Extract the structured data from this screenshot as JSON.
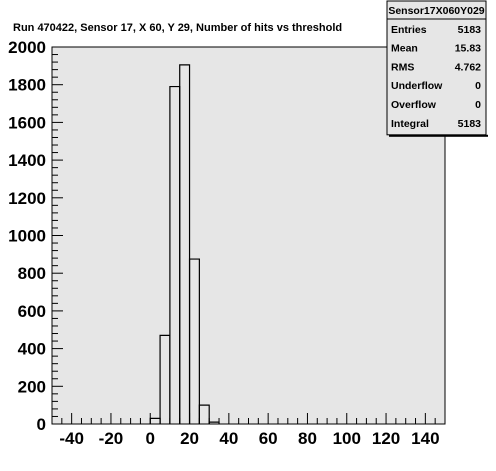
{
  "chart_data": {
    "type": "histogram",
    "title": "Run 470422, Sensor 17, X 60, Y 29, Number of hits vs threshold",
    "xlabel": "",
    "ylabel": "",
    "xlim": [
      -50,
      150
    ],
    "ylim": [
      0,
      2000
    ],
    "x_ticks": [
      -40,
      -20,
      0,
      20,
      40,
      60,
      80,
      100,
      120,
      140
    ],
    "y_ticks": [
      0,
      200,
      400,
      600,
      800,
      1000,
      1200,
      1400,
      1600,
      1800,
      2000
    ],
    "grid": false,
    "bins": [
      {
        "x0": 0,
        "x1": 5,
        "value": 30
      },
      {
        "x0": 5,
        "x1": 10,
        "value": 470
      },
      {
        "x0": 10,
        "x1": 15,
        "value": 1790
      },
      {
        "x0": 15,
        "x1": 20,
        "value": 1905
      },
      {
        "x0": 20,
        "x1": 25,
        "value": 875
      },
      {
        "x0": 25,
        "x1": 30,
        "value": 100
      },
      {
        "x0": 30,
        "x1": 35,
        "value": 10
      }
    ]
  },
  "stats_box": {
    "name": "Sensor17X060Y029",
    "rows": [
      {
        "label": "Entries",
        "value": "5183"
      },
      {
        "label": "Mean",
        "value": "15.83"
      },
      {
        "label": "RMS",
        "value": "4.762"
      },
      {
        "label": "Underflow",
        "value": "0"
      },
      {
        "label": "Overflow",
        "value": "0"
      },
      {
        "label": "Integral",
        "value": "5183"
      }
    ]
  },
  "colors": {
    "plot_background": "#e6e6e6",
    "page_background": "#ffffff",
    "frame": "#000000",
    "histogram_line": "#000000",
    "stats_background": "#e6e6e6"
  }
}
